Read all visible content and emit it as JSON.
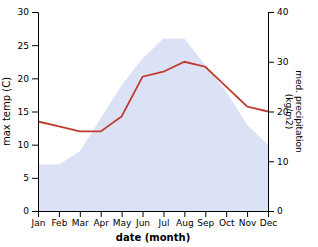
{
  "chart_data": {
    "type": "line",
    "categories": [
      "Jan",
      "Feb",
      "Mar",
      "Apr",
      "May",
      "Jun",
      "Jul",
      "Aug",
      "Sep",
      "Oct",
      "Nov",
      "Dec"
    ],
    "series": [
      {
        "type": "area",
        "color": "#c5cef0",
        "values": [
          7,
          7,
          9,
          14,
          19,
          23,
          26,
          26,
          22,
          18,
          13,
          10
        ]
      },
      {
        "type": "line",
        "color": "#c0392b",
        "axis": "y2",
        "values": [
          18,
          17,
          16,
          16,
          19,
          27,
          28,
          30,
          29,
          25,
          21,
          20
        ]
      }
    ],
    "xlabel": "date (month)",
    "ylabel": "max temp (C)",
    "y2label": "med. precipitation\n(kg/m2)",
    "ylim": [
      0,
      30
    ],
    "yticks": [
      0,
      5,
      10,
      15,
      20,
      25,
      30
    ],
    "y2lim": [
      0,
      40
    ],
    "y2ticks": [
      0,
      10,
      20,
      30,
      40
    ],
    "grid": false
  }
}
